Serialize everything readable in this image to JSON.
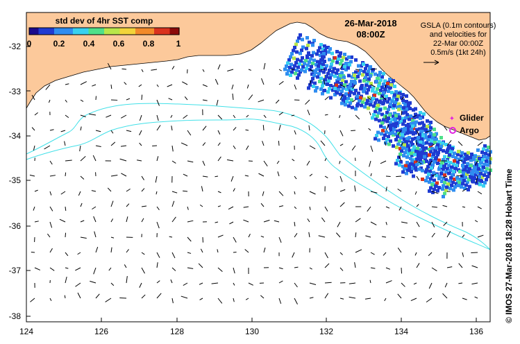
{
  "map": {
    "colorbar": {
      "title": "std dev of 4hr SST comp",
      "ticks": [
        "0",
        "0.2",
        "0.4",
        "0.6",
        "0.8",
        "1"
      ],
      "colors": [
        "#1a0a8c",
        "#1f3bd1",
        "#2f8df0",
        "#38d1f0",
        "#4fe08a",
        "#b8e64a",
        "#f2d43a",
        "#f28a2a",
        "#d9321e",
        "#8c0a0a"
      ]
    },
    "date": "26-Mar-2018",
    "time": "08:00Z",
    "gsla": {
      "lines": [
        "GSLA (0.1m contours)",
        "and velocities for",
        "22-Mar 00:00Z",
        "0.5m/s (1kt 24h)"
      ]
    },
    "legend": {
      "glider": "Glider",
      "argo": "Argo",
      "glider_color": "#e020e0",
      "argo_color": "#e020e0"
    },
    "credit": "© IMOS 27-Mar-2018 18:28 Hobart Time",
    "axes": {
      "lon_ticks": [
        "124",
        "126",
        "128",
        "130",
        "132",
        "134",
        "136"
      ],
      "lat_ticks": [
        "-32",
        "-33",
        "-34",
        "-35",
        "-36",
        "-37",
        "-38"
      ]
    },
    "colors": {
      "land": "#fcc99b",
      "contour": "#40e0e8",
      "ocean": "#ffffff"
    }
  }
}
